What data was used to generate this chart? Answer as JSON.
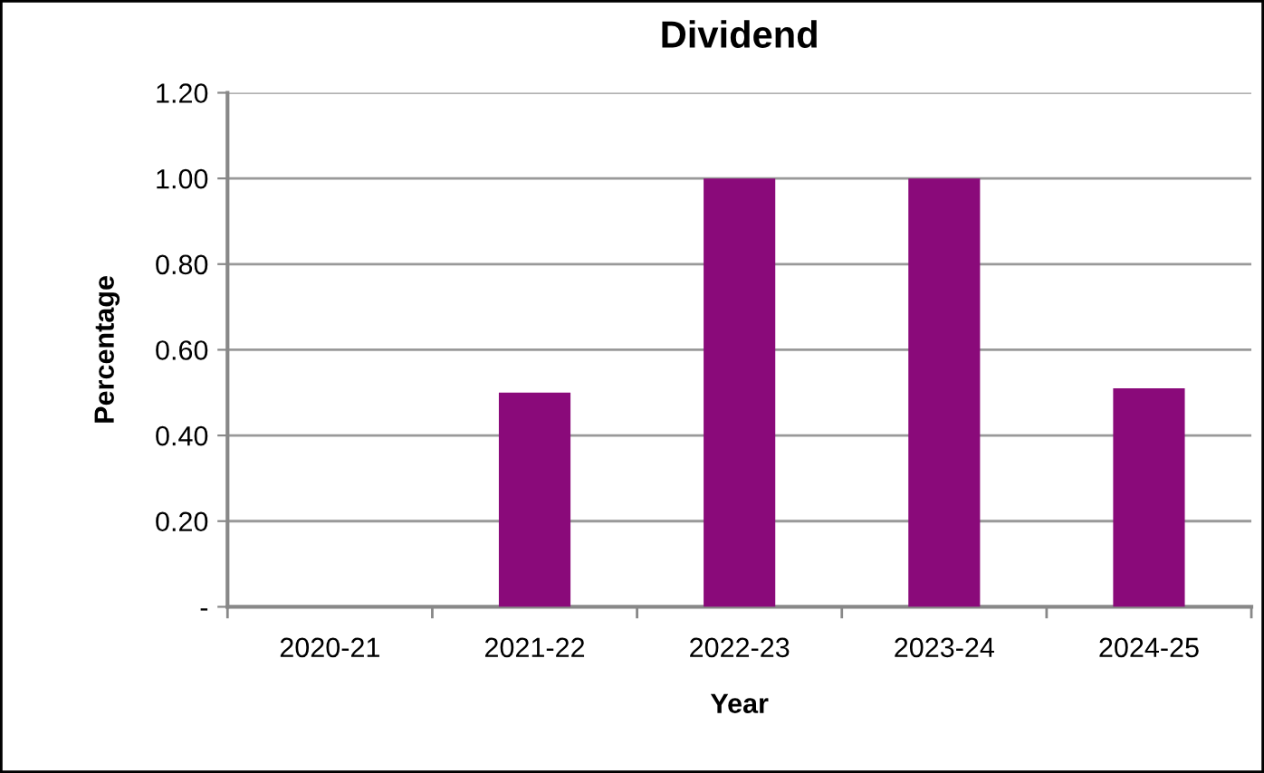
{
  "chart_data": {
    "type": "bar",
    "title": "Dividend",
    "xlabel": "Year",
    "ylabel": "Percentage",
    "categories": [
      "2020-21",
      "2021-22",
      "2022-23",
      "2023-24",
      "2024-25"
    ],
    "values": [
      0,
      0.5,
      1.0,
      1.0,
      0.51
    ],
    "color": "#8a0a7a",
    "ylim": [
      0,
      1.2
    ],
    "yticks": [
      {
        "value": 0,
        "label": "-"
      },
      {
        "value": 0.2,
        "label": "0.20"
      },
      {
        "value": 0.4,
        "label": "0.40"
      },
      {
        "value": 0.6,
        "label": "0.60"
      },
      {
        "value": 0.8,
        "label": "0.80"
      },
      {
        "value": 1.0,
        "label": "1.00"
      },
      {
        "value": 1.2,
        "label": "1.20"
      }
    ],
    "grid": "y",
    "legend": false
  }
}
